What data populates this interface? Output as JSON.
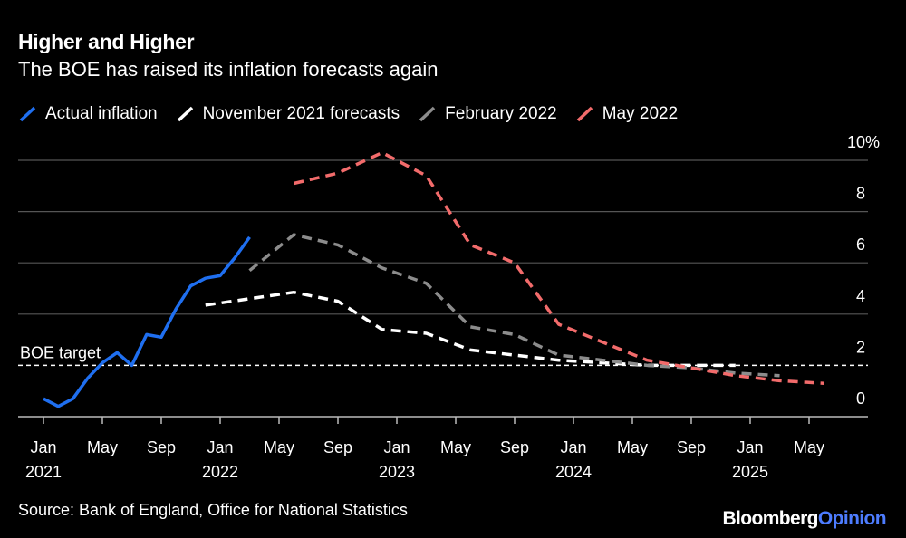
{
  "chart_data": {
    "type": "line",
    "title": "Higher and Higher",
    "subtitle": "The BOE has raised its inflation forecasts again",
    "ylim": [
      0,
      10
    ],
    "yticks": [
      "10%",
      "8",
      "6",
      "4",
      "2",
      "0"
    ],
    "ytick_values": [
      10,
      8,
      6,
      4,
      2,
      0
    ],
    "xticks": [
      {
        "month": "2021-01",
        "label": "Jan",
        "year": "2021"
      },
      {
        "month": "2021-05",
        "label": "May"
      },
      {
        "month": "2021-09",
        "label": "Sep"
      },
      {
        "month": "2022-01",
        "label": "Jan",
        "year": "2022"
      },
      {
        "month": "2022-05",
        "label": "May"
      },
      {
        "month": "2022-09",
        "label": "Sep"
      },
      {
        "month": "2023-01",
        "label": "Jan",
        "year": "2023"
      },
      {
        "month": "2023-05",
        "label": "May"
      },
      {
        "month": "2023-09",
        "label": "Sep"
      },
      {
        "month": "2024-01",
        "label": "Jan",
        "year": "2024"
      },
      {
        "month": "2024-05",
        "label": "May"
      },
      {
        "month": "2024-09",
        "label": "Sep"
      },
      {
        "month": "2025-01",
        "label": "Jan",
        "year": "2025"
      },
      {
        "month": "2025-05",
        "label": "May"
      }
    ],
    "reference_line": {
      "label": "BOE target",
      "value": 2
    },
    "legend_position": "top",
    "series": [
      {
        "name": "Actual inflation",
        "color": "#1f6ff0",
        "style": "solid",
        "start": "2021-01",
        "step_months": 1,
        "values": [
          0.7,
          0.4,
          0.7,
          1.5,
          2.1,
          2.5,
          2.0,
          3.2,
          3.1,
          4.2,
          5.1,
          5.4,
          5.5,
          6.2,
          7.0
        ]
      },
      {
        "name": "November 2021 forecasts",
        "color": "#ffffff",
        "style": "dashed",
        "start": "2021-12",
        "step_months": 3,
        "values": [
          4.35,
          4.6,
          4.85,
          4.5,
          3.4,
          3.25,
          2.6,
          2.4,
          2.2,
          2.1,
          2.0,
          2.0,
          2.0
        ]
      },
      {
        "name": "February 2022",
        "color": "#8c8c8c",
        "style": "dashed",
        "start": "2022-03",
        "step_months": 3,
        "values": [
          5.7,
          7.1,
          6.7,
          5.8,
          5.2,
          3.5,
          3.2,
          2.4,
          2.2,
          2.0,
          1.9,
          1.7,
          1.6
        ]
      },
      {
        "name": "May 2022",
        "color": "#f26b6b",
        "style": "dashed",
        "start": "2022-06",
        "step_months": 3,
        "values": [
          9.1,
          9.5,
          10.3,
          9.4,
          6.7,
          6.0,
          3.6,
          2.9,
          2.2,
          1.9,
          1.6,
          1.4,
          1.3
        ]
      }
    ]
  },
  "source": "Source: Bank of England, Office for National Statistics",
  "logo": {
    "brand": "Bloomberg",
    "suffix": "Opinion"
  }
}
